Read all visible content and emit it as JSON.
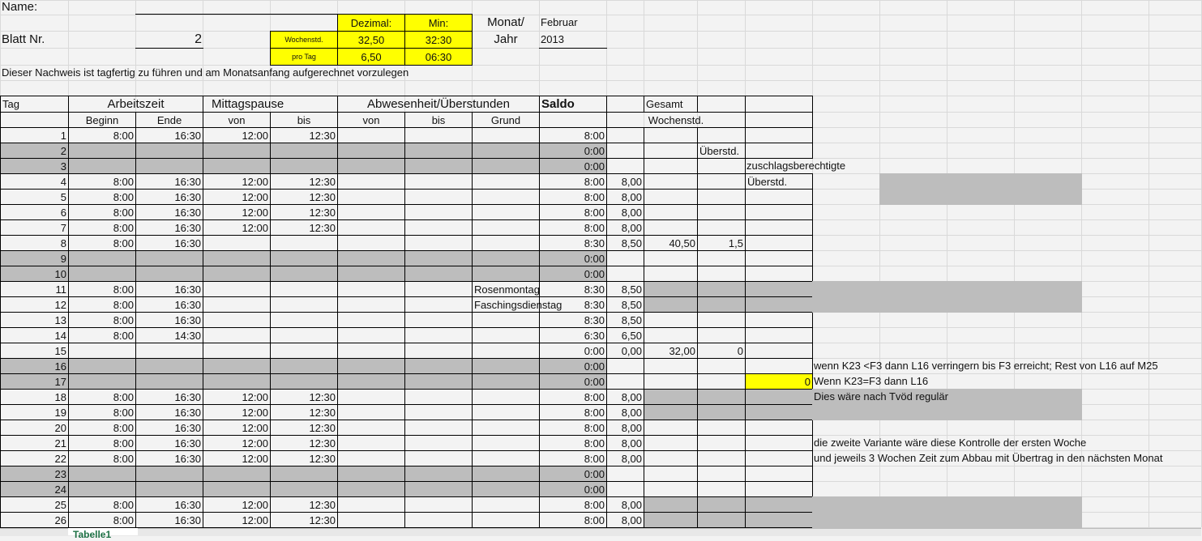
{
  "header": {
    "name_label": "Name:",
    "blatt_label": "Blatt Nr.",
    "blatt_value": "2",
    "dezimal_label": "Dezimal:",
    "min_label": "Min:",
    "wochenstd_label": "Wochenstd.",
    "wochenstd_dezimal": "32,50",
    "wochenstd_min": "32:30",
    "protag_label": "pro Tag",
    "protag_dezimal": "6,50",
    "protag_min": "06:30",
    "monat_label": "Monat/",
    "jahr_label": "Jahr",
    "monat_value": "Februar",
    "jahr_value": "2013",
    "note": "Dieser Nachweis ist tagfertig zu führen und am Monatsanfang aufgerechnet vorzulegen"
  },
  "table": {
    "h_tag": "Tag",
    "h_arbeitszeit": "Arbeitszeit",
    "h_mittagspause": "Mittagspause",
    "h_abwesenheit": "Abwesenheit/Überstunden",
    "h_saldo": "Saldo",
    "h_gesamt": "Gesamt",
    "h_beginn": "Beginn",
    "h_ende": "Ende",
    "h_von": "von",
    "h_bis": "bis",
    "h_von2": "von",
    "h_bis2": "bis",
    "h_grund": "Grund",
    "h_wochenstd": "Wochenstd.",
    "rows": [
      {
        "tag": "1",
        "beginn": "8:00",
        "ende": "16:30",
        "von": "12:00",
        "bis": "12:30",
        "grund": "",
        "saldo": "8:00",
        "dez": "",
        "ges": "",
        "ueb": "",
        "weekend": false
      },
      {
        "tag": "2",
        "beginn": "",
        "ende": "",
        "von": "",
        "bis": "",
        "grund": "",
        "saldo": "0:00",
        "dez": "",
        "ges": "",
        "ueb": "Überstd.",
        "weekend": true
      },
      {
        "tag": "3",
        "beginn": "",
        "ende": "",
        "von": "",
        "bis": "",
        "grund": "",
        "saldo": "0:00",
        "dez": "",
        "ges": "",
        "ueb": "",
        "weekend": true
      },
      {
        "tag": "4",
        "beginn": "8:00",
        "ende": "16:30",
        "von": "12:00",
        "bis": "12:30",
        "grund": "",
        "saldo": "8:00",
        "dez": "8,00",
        "ges": "",
        "ueb": "",
        "weekend": false
      },
      {
        "tag": "5",
        "beginn": "8:00",
        "ende": "16:30",
        "von": "12:00",
        "bis": "12:30",
        "grund": "",
        "saldo": "8:00",
        "dez": "8,00",
        "ges": "",
        "ueb": "",
        "weekend": false
      },
      {
        "tag": "6",
        "beginn": "8:00",
        "ende": "16:30",
        "von": "12:00",
        "bis": "12:30",
        "grund": "",
        "saldo": "8:00",
        "dez": "8,00",
        "ges": "",
        "ueb": "",
        "weekend": false
      },
      {
        "tag": "7",
        "beginn": "8:00",
        "ende": "16:30",
        "von": "12:00",
        "bis": "12:30",
        "grund": "",
        "saldo": "8:00",
        "dez": "8,00",
        "ges": "",
        "ueb": "",
        "weekend": false
      },
      {
        "tag": "8",
        "beginn": "8:00",
        "ende": "16:30",
        "von": "",
        "bis": "",
        "grund": "",
        "saldo": "8:30",
        "dez": "8,50",
        "ges": "40,50",
        "ueb": "1,5",
        "weekend": false
      },
      {
        "tag": "9",
        "beginn": "",
        "ende": "",
        "von": "",
        "bis": "",
        "grund": "",
        "saldo": "0:00",
        "dez": "",
        "ges": "",
        "ueb": "",
        "weekend": true
      },
      {
        "tag": "10",
        "beginn": "",
        "ende": "",
        "von": "",
        "bis": "",
        "grund": "",
        "saldo": "0:00",
        "dez": "",
        "ges": "",
        "ueb": "",
        "weekend": true
      },
      {
        "tag": "11",
        "beginn": "8:00",
        "ende": "16:30",
        "von": "",
        "bis": "",
        "grund": "Rosenmontag",
        "saldo": "8:30",
        "dez": "8,50",
        "ges": "",
        "ueb": "",
        "weekend": false
      },
      {
        "tag": "12",
        "beginn": "8:00",
        "ende": "16:30",
        "von": "",
        "bis": "",
        "grund": "Faschingsdienstag",
        "saldo": "8:30",
        "dez": "8,50",
        "ges": "",
        "ueb": "",
        "weekend": false
      },
      {
        "tag": "13",
        "beginn": "8:00",
        "ende": "16:30",
        "von": "",
        "bis": "",
        "grund": "",
        "saldo": "8:30",
        "dez": "8,50",
        "ges": "",
        "ueb": "",
        "weekend": false
      },
      {
        "tag": "14",
        "beginn": "8:00",
        "ende": "14:30",
        "von": "",
        "bis": "",
        "grund": "",
        "saldo": "6:30",
        "dez": "6,50",
        "ges": "",
        "ueb": "",
        "weekend": false
      },
      {
        "tag": "15",
        "beginn": "",
        "ende": "",
        "von": "",
        "bis": "",
        "grund": "",
        "saldo": "0:00",
        "dez": "0,00",
        "ges": "32,00",
        "ueb": "0",
        "weekend": false
      },
      {
        "tag": "16",
        "beginn": "",
        "ende": "",
        "von": "",
        "bis": "",
        "grund": "",
        "saldo": "0:00",
        "dez": "",
        "ges": "",
        "ueb": "",
        "weekend": true
      },
      {
        "tag": "17",
        "beginn": "",
        "ende": "",
        "von": "",
        "bis": "",
        "grund": "",
        "saldo": "0:00",
        "dez": "",
        "ges": "",
        "ueb": "",
        "weekend": true
      },
      {
        "tag": "18",
        "beginn": "8:00",
        "ende": "16:30",
        "von": "12:00",
        "bis": "12:30",
        "grund": "",
        "saldo": "8:00",
        "dez": "8,00",
        "ges": "",
        "ueb": "",
        "weekend": false
      },
      {
        "tag": "19",
        "beginn": "8:00",
        "ende": "16:30",
        "von": "12:00",
        "bis": "12:30",
        "grund": "",
        "saldo": "8:00",
        "dez": "8,00",
        "ges": "",
        "ueb": "",
        "weekend": false
      },
      {
        "tag": "20",
        "beginn": "8:00",
        "ende": "16:30",
        "von": "12:00",
        "bis": "12:30",
        "grund": "",
        "saldo": "8:00",
        "dez": "8,00",
        "ges": "",
        "ueb": "",
        "weekend": false
      },
      {
        "tag": "21",
        "beginn": "8:00",
        "ende": "16:30",
        "von": "12:00",
        "bis": "12:30",
        "grund": "",
        "saldo": "8:00",
        "dez": "8,00",
        "ges": "",
        "ueb": "",
        "weekend": false
      },
      {
        "tag": "22",
        "beginn": "8:00",
        "ende": "16:30",
        "von": "12:00",
        "bis": "12:30",
        "grund": "",
        "saldo": "8:00",
        "dez": "8,00",
        "ges": "",
        "ueb": "",
        "weekend": false
      },
      {
        "tag": "23",
        "beginn": "",
        "ende": "",
        "von": "",
        "bis": "",
        "grund": "",
        "saldo": "0:00",
        "dez": "",
        "ges": "",
        "ueb": "",
        "weekend": true
      },
      {
        "tag": "24",
        "beginn": "",
        "ende": "",
        "von": "",
        "bis": "",
        "grund": "",
        "saldo": "0:00",
        "dez": "",
        "ges": "",
        "ueb": "",
        "weekend": true
      },
      {
        "tag": "25",
        "beginn": "8:00",
        "ende": "16:30",
        "von": "12:00",
        "bis": "12:30",
        "grund": "",
        "saldo": "8:00",
        "dez": "8,00",
        "ges": "",
        "ueb": "",
        "weekend": false
      },
      {
        "tag": "26",
        "beginn": "8:00",
        "ende": "16:30",
        "von": "12:00",
        "bis": "12:30",
        "grund": "",
        "saldo": "8:00",
        "dez": "8,00",
        "ges": "",
        "ueb": "",
        "weekend": false
      }
    ]
  },
  "side": {
    "zuschlag1": "zuschlagsberechtigte",
    "zuschlag2": "Überstd.",
    "yellow_value": "0",
    "note1": "wenn K23 <F3 dann L16 verringern bis F3 erreicht; Rest von L16 auf M25",
    "note2": "Wenn K23=F3 dann L16",
    "note3": "Dies wäre nach Tvöd regulär",
    "note4": "die zweite Variante wäre diese Kontrolle der ersten Woche",
    "note5": "und jeweils 3 Wochen Zeit zum Abbau mit Übertrag in den nächsten Monat"
  },
  "sheet_tabs": [
    "Tabelle1"
  ],
  "colors": {
    "highlight": "#ffff00",
    "weekend": "#bdbdbd"
  }
}
